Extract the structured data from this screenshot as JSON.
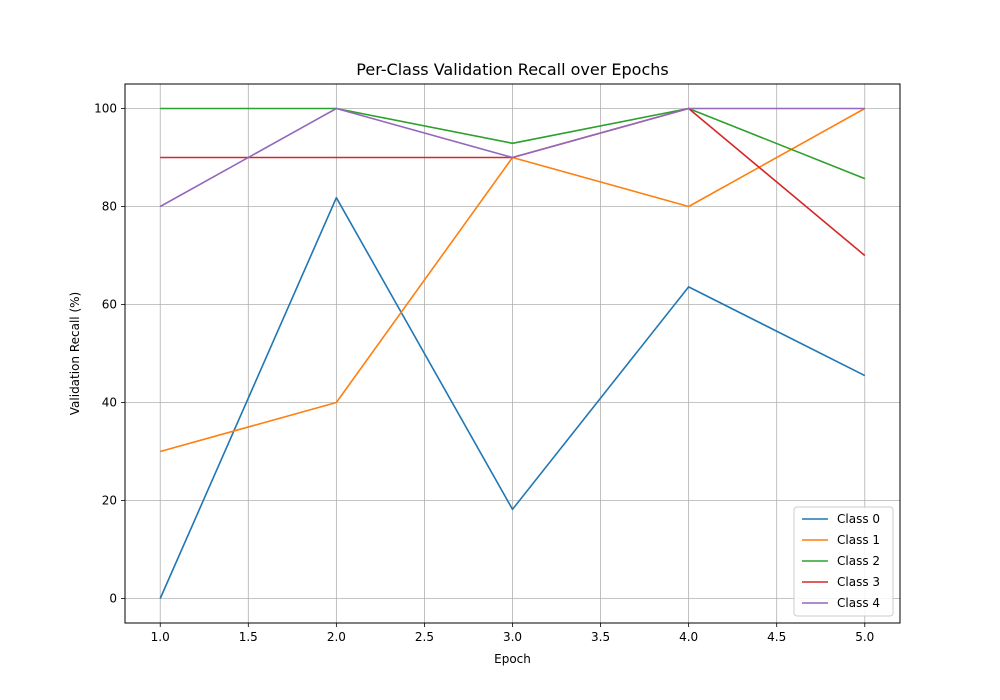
{
  "chart_data": {
    "type": "line",
    "title": "Per-Class Validation Recall over Epochs",
    "xlabel": "Epoch",
    "ylabel": "Validation Recall (%)",
    "x": [
      1,
      2,
      3,
      4,
      5
    ],
    "xlim": [
      0.8,
      5.2
    ],
    "ylim": [
      -5,
      105
    ],
    "xticks": [
      "1.0",
      "1.5",
      "2.0",
      "2.5",
      "3.0",
      "3.5",
      "4.0",
      "4.5",
      "5.0"
    ],
    "yticks": [
      "0",
      "20",
      "40",
      "60",
      "80",
      "100"
    ],
    "grid": true,
    "legend_position": "lower-right",
    "series": [
      {
        "name": "Class 0",
        "color": "#1f77b4",
        "values": [
          0,
          81.8,
          18.2,
          63.6,
          45.5
        ]
      },
      {
        "name": "Class 1",
        "color": "#ff7f0e",
        "values": [
          30,
          40,
          90,
          80,
          100
        ]
      },
      {
        "name": "Class 2",
        "color": "#2ca02c",
        "values": [
          100,
          100,
          92.9,
          100,
          85.7
        ]
      },
      {
        "name": "Class 3",
        "color": "#d62728",
        "values": [
          90,
          90,
          90,
          100,
          70
        ]
      },
      {
        "name": "Class 4",
        "color": "#9467bd",
        "values": [
          80,
          100,
          90,
          100,
          100
        ]
      }
    ]
  }
}
